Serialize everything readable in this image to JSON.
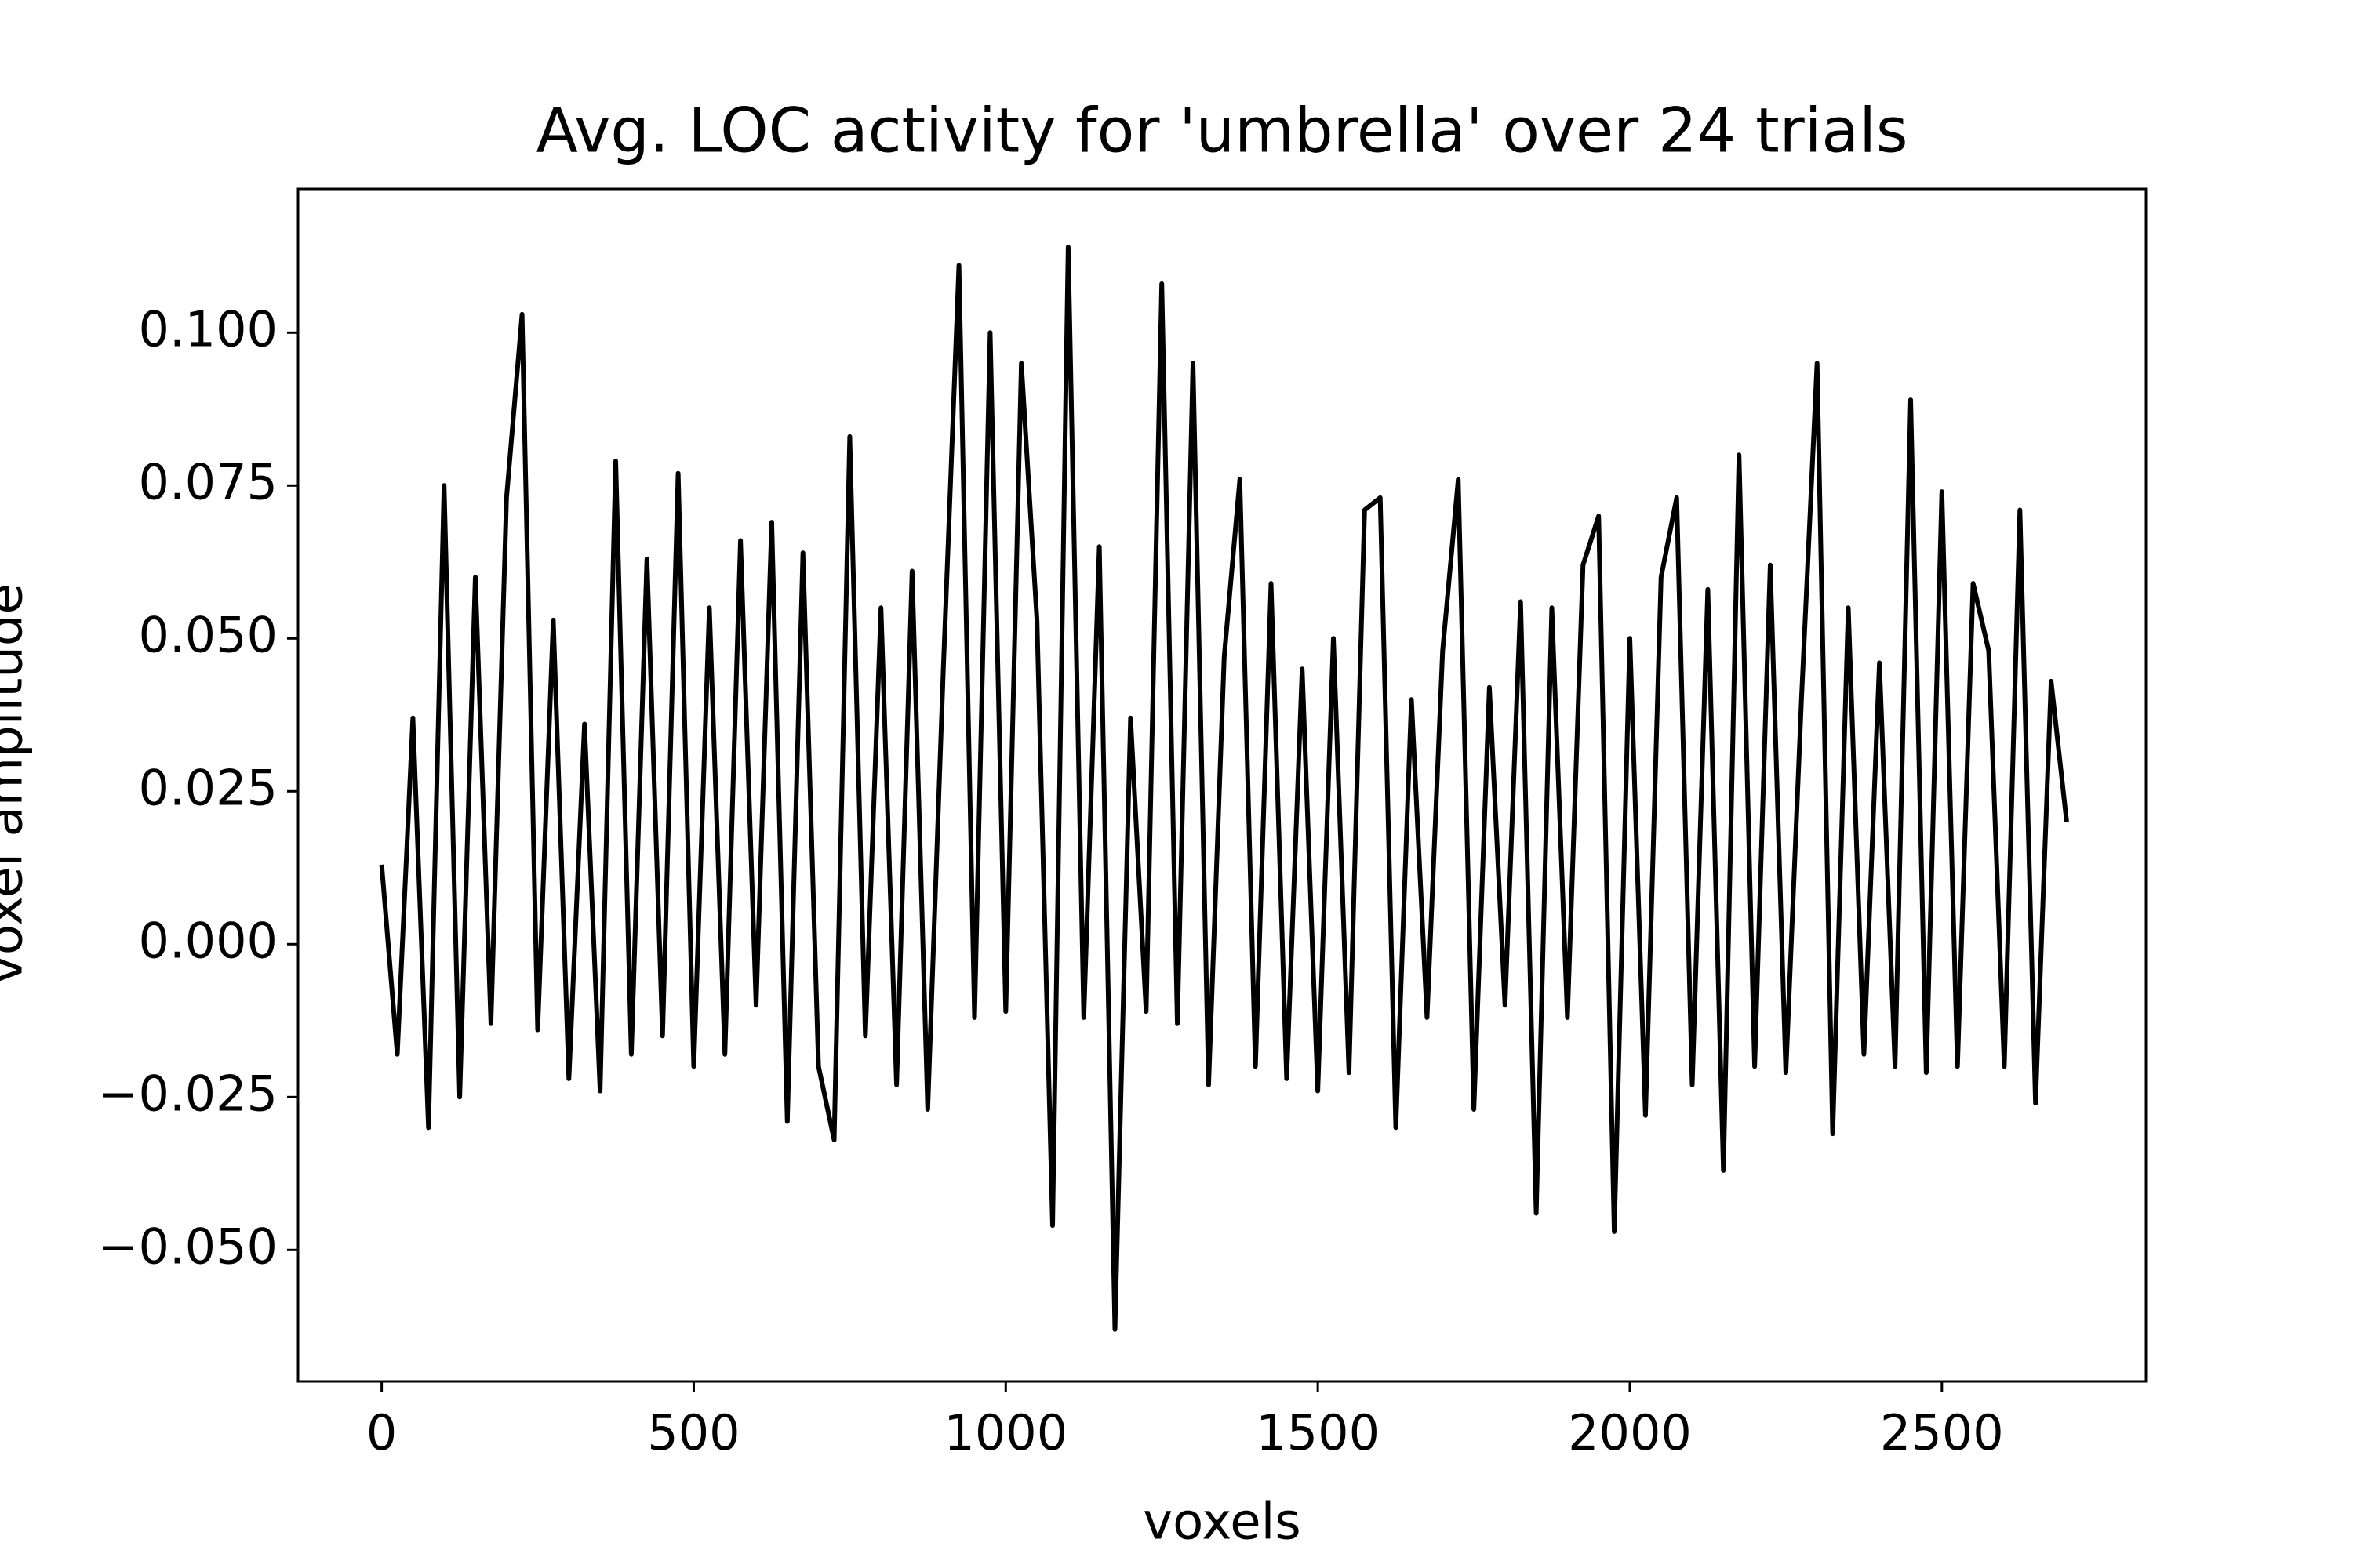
{
  "chart_data": {
    "type": "line",
    "title": "Avg. LOC activity for 'umbrella' over 24 trials",
    "xlabel": "voxels",
    "ylabel": "voxel amplitude",
    "color": "#000000",
    "x": [
      0,
      25,
      50,
      75,
      100,
      125,
      150,
      175,
      200,
      225,
      250,
      275,
      300,
      325,
      350,
      375,
      400,
      425,
      450,
      475,
      500,
      525,
      550,
      575,
      600,
      625,
      650,
      675,
      700,
      725,
      750,
      775,
      800,
      825,
      850,
      875,
      900,
      925,
      950,
      975,
      1000,
      1025,
      1050,
      1075,
      1100,
      1125,
      1150,
      1175,
      1200,
      1225,
      1250,
      1275,
      1300,
      1325,
      1350,
      1375,
      1400,
      1425,
      1450,
      1475,
      1500,
      1525,
      1550,
      1575,
      1600,
      1625,
      1650,
      1675,
      1700,
      1725,
      1750,
      1775,
      1800,
      1825,
      1850,
      1875,
      1900,
      1925,
      1950,
      1975,
      2000,
      2025,
      2050,
      2075,
      2100,
      2125,
      2150,
      2175,
      2200,
      2225,
      2250,
      2275,
      2300,
      2325,
      2350,
      2375,
      2400,
      2425,
      2450,
      2475,
      2500,
      2525,
      2550,
      2575,
      2600,
      2625,
      2650,
      2675,
      2700
    ],
    "values": [
      0.013,
      -0.018,
      0.037,
      -0.03,
      0.075,
      -0.025,
      0.06,
      -0.013,
      0.073,
      0.103,
      -0.014,
      0.053,
      -0.022,
      0.036,
      -0.024,
      0.079,
      -0.018,
      0.063,
      -0.015,
      0.077,
      -0.02,
      0.055,
      -0.018,
      0.066,
      -0.01,
      0.069,
      -0.029,
      0.064,
      -0.02,
      -0.032,
      0.083,
      -0.015,
      0.055,
      -0.023,
      0.061,
      -0.027,
      0.045,
      0.111,
      -0.012,
      0.1,
      -0.011,
      0.095,
      0.053,
      -0.046,
      0.114,
      -0.012,
      0.065,
      -0.063,
      0.037,
      -0.011,
      0.108,
      -0.013,
      0.095,
      -0.023,
      0.047,
      0.076,
      -0.02,
      0.059,
      -0.022,
      0.045,
      -0.024,
      0.05,
      -0.021,
      0.071,
      0.073,
      -0.03,
      0.04,
      -0.012,
      0.048,
      0.076,
      -0.027,
      0.042,
      -0.01,
      0.056,
      -0.044,
      0.055,
      -0.012,
      0.062,
      0.07,
      -0.047,
      0.05,
      -0.028,
      0.06,
      0.073,
      -0.023,
      0.058,
      -0.037,
      0.08,
      -0.02,
      0.062,
      -0.021,
      0.04,
      0.095,
      -0.031,
      0.055,
      -0.018,
      0.046,
      -0.02,
      0.089,
      -0.021,
      0.074,
      -0.02,
      0.059,
      0.048,
      -0.02,
      0.071,
      -0.026,
      0.043,
      0.02
    ],
    "xlim": [
      -134,
      2827
    ],
    "ylim": [
      -0.0715,
      0.1235
    ],
    "xticks": [
      0,
      500,
      1000,
      1500,
      2000,
      2500
    ],
    "yticks": [
      {
        "value": -0.05,
        "label": "−0.050"
      },
      {
        "value": -0.025,
        "label": "−0.025"
      },
      {
        "value": 0,
        "label": "0.000"
      },
      {
        "value": 0.025,
        "label": "0.025"
      },
      {
        "value": 0.05,
        "label": "0.050"
      },
      {
        "value": 0.075,
        "label": "0.075"
      },
      {
        "value": 0.1,
        "label": "0.100"
      }
    ],
    "grid": false
  }
}
